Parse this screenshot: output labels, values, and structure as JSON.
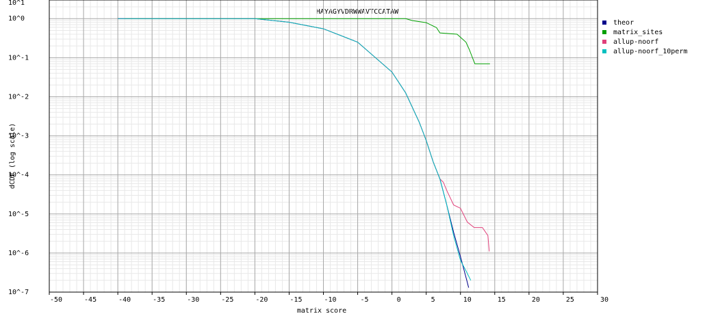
{
  "chart_data": {
    "type": "line",
    "title": "HAYAGYVDRWWAVTCCATAW",
    "x_label": "matrix score",
    "y_label": "dCDF (log scale)",
    "log_y": true,
    "grid": true,
    "legend": "right",
    "xlim": [
      -50,
      30
    ],
    "ylim": [
      1e-07,
      3
    ],
    "xticks": [
      -50,
      -45,
      -40,
      -35,
      -30,
      -25,
      -20,
      -15,
      -10,
      -5,
      0,
      5,
      10,
      15,
      20,
      25,
      30
    ],
    "yticks": [
      {
        "value": 1e-07,
        "label": "10^-7"
      },
      {
        "value": 1e-06,
        "label": "10^-6"
      },
      {
        "value": 1e-05,
        "label": "10^-5"
      },
      {
        "value": 0.0001,
        "label": "10^-4"
      },
      {
        "value": 0.001,
        "label": "10^-3"
      },
      {
        "value": 0.01,
        "label": "10^-2"
      },
      {
        "value": 0.1,
        "label": "10^-1"
      },
      {
        "value": 1,
        "label": "10^0"
      },
      {
        "value": 10,
        "label": "10^1"
      }
    ],
    "series": [
      {
        "name": "theor",
        "color": "#00008b",
        "x": [
          -40,
          -20,
          -15,
          -10,
          -5,
          0,
          2,
          4,
          5,
          6,
          7,
          8,
          9,
          10,
          11.2
        ],
        "values": [
          1,
          1,
          0.81,
          0.55,
          0.25,
          0.043,
          0.0126,
          0.0022,
          0.00076,
          0.00022,
          7.9e-05,
          1.7e-05,
          3.4e-06,
          8.1e-07,
          1.3e-07
        ]
      },
      {
        "name": "matrix_sites",
        "color": "#00a000",
        "x": [
          -39,
          2,
          3,
          5,
          6.5,
          7,
          9.5,
          10.8,
          11.3,
          11.8,
          12.1,
          14.3
        ],
        "values": [
          1,
          1,
          0.89,
          0.79,
          0.59,
          0.43,
          0.4,
          0.25,
          0.16,
          0.095,
          0.07,
          0.07
        ]
      },
      {
        "name": "allup-noorf",
        "color": "#e0407a",
        "x": [
          -40,
          -20,
          -15,
          -10,
          -5,
          0,
          2,
          4,
          5,
          6,
          7,
          7.5,
          8,
          9,
          10,
          11,
          12,
          13.2,
          14,
          14.2
        ],
        "values": [
          1,
          1,
          0.81,
          0.55,
          0.25,
          0.043,
          0.0126,
          0.0022,
          0.00076,
          0.00022,
          7.9e-05,
          6.5e-05,
          4e-05,
          1.7e-05,
          1.4e-05,
          6.2e-06,
          4.5e-06,
          4.5e-06,
          2.8e-06,
          1.1e-06
        ]
      },
      {
        "name": "allup-noorf_10perm",
        "color": "#00c0c0",
        "x": [
          -40,
          -20,
          -15,
          -10,
          -5,
          0,
          2,
          4,
          5,
          6,
          7,
          8,
          9,
          10,
          11,
          11.5
        ],
        "values": [
          1,
          1,
          0.81,
          0.55,
          0.25,
          0.043,
          0.0126,
          0.0022,
          0.00076,
          0.00022,
          7.9e-05,
          1.7e-05,
          2.8e-06,
          6.5e-07,
          3e-07,
          2e-07
        ]
      }
    ]
  }
}
